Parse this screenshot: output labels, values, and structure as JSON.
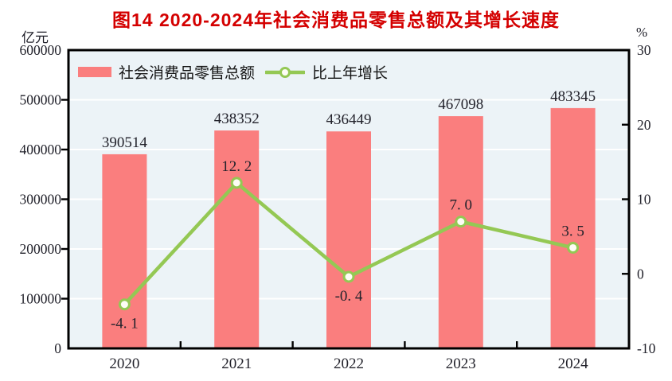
{
  "figure": {
    "left_axis_unit": "亿元",
    "right_axis_unit": "%"
  },
  "chart_data": {
    "type": "bar",
    "title": "图14  2020-2024年社会消费品零售总额及其增长速度",
    "title_color": "#d40000",
    "categories": [
      "2020",
      "2021",
      "2022",
      "2023",
      "2024"
    ],
    "series": [
      {
        "name": "社会消费品零售总额",
        "type": "bar",
        "axis": "left",
        "unit": "亿元",
        "values": [
          390514,
          438352,
          436449,
          467098,
          483345
        ],
        "value_labels": [
          "390514",
          "438352",
          "436449",
          "467098",
          "483345"
        ],
        "color": "#fa7e7e"
      },
      {
        "name": "比上年增长",
        "type": "line",
        "axis": "right",
        "unit": "%",
        "values": [
          -4.1,
          12.2,
          -0.4,
          7.0,
          3.5
        ],
        "value_labels": [
          "-4. 1",
          "12. 2",
          "-0. 4",
          "7. 0",
          "3. 5"
        ],
        "label_side": [
          "below",
          "above",
          "below",
          "above",
          "above"
        ],
        "color": "#94c854",
        "marker": "white-circle"
      }
    ],
    "left_axis": {
      "min": 0,
      "max": 600000,
      "step": 100000,
      "tick_values": [
        0,
        100000,
        200000,
        300000,
        400000,
        500000,
        600000
      ],
      "tick_labels": [
        "0",
        "100000",
        "200000",
        "300000",
        "400000",
        "500000",
        "600000"
      ]
    },
    "right_axis": {
      "min": -10,
      "max": 30,
      "step": 10,
      "tick_values": [
        -10,
        0,
        10,
        20,
        30
      ],
      "tick_labels": [
        "-10",
        "0",
        "10",
        "20",
        "30"
      ]
    },
    "grid": true,
    "grid_color": "#ffffff",
    "plot_bg": "#ecf3f7",
    "axis_color": "#000000",
    "label_color": "#22222b",
    "legend_position": "top-left-inside"
  }
}
